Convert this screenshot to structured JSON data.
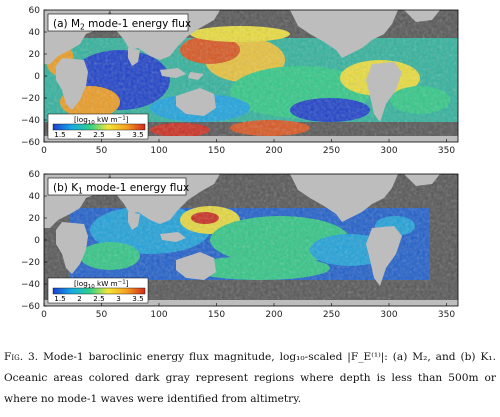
{
  "panels": [
    {
      "id": "a",
      "label_prefix": "(a) M",
      "label_sub": "2",
      "label_suffix": " mode-1 energy flux",
      "colorbar": {
        "title": "[log",
        "title_sub": "10",
        "title_unit": " kW m",
        "title_sup": "−1",
        "title_end": "]",
        "ticks": [
          "1.5",
          "2",
          "2.5",
          "3",
          "3.5"
        ]
      }
    },
    {
      "id": "b",
      "label_prefix": "(b) K",
      "label_sub": "1",
      "label_suffix": " mode-1 energy flux",
      "colorbar": {
        "title": "[log",
        "title_sub": "10",
        "title_unit": " kW m",
        "title_sup": "−1",
        "title_end": "]",
        "ticks": [
          "1.5",
          "2",
          "2.5",
          "3",
          "3.5"
        ]
      }
    }
  ],
  "axes": {
    "x_ticks": [
      "0",
      "50",
      "100",
      "150",
      "200",
      "250",
      "300",
      "350"
    ],
    "y_ticks": [
      "60",
      "40",
      "20",
      "0",
      "−20",
      "−40",
      "−60"
    ]
  },
  "caption": {
    "lead": "Fig. 3.",
    "text": "Mode-1 baroclinic energy flux magnitude, log₁₀-scaled |F_E⁽¹⁾|: (a) M₂, and (b) K₁. Oceanic areas colored dark gray represent regions where depth is less than 500m or where no mode-1 waves were identified from altimetry."
  },
  "colors": {
    "ocean_gray": "#555555",
    "land_gray": "#bdbdbd",
    "colormap": [
      "#1a3fd0",
      "#19a8e6",
      "#2fd08a",
      "#f3e53a",
      "#f5a020",
      "#d22a1c"
    ]
  }
}
